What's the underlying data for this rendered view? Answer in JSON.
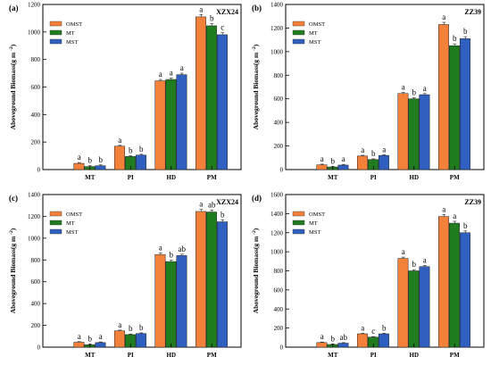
{
  "legend": [
    "OMST",
    "MT",
    "MST"
  ],
  "colors": {
    "OMST": "#f4813a",
    "MT": "#1f7d1f",
    "MST": "#2f5fbf"
  },
  "ylabel_main": "Aboveground Biomass(g m",
  "ylabel_sup": "-2",
  "ylabel_close": ")",
  "chart_data": [
    {
      "panel": "(a)",
      "title": "XZX24",
      "type": "bar",
      "categories": [
        "MT",
        "PI",
        "HD",
        "PM"
      ],
      "ylim": [
        0,
        1200
      ],
      "yticks": [
        0,
        200,
        400,
        600,
        800,
        1000,
        1200
      ],
      "series": [
        {
          "name": "OMST",
          "values": [
            45,
            170,
            645,
            1110
          ]
        },
        {
          "name": "MT",
          "values": [
            22,
            95,
            655,
            1045
          ]
        },
        {
          "name": "MST",
          "values": [
            28,
            105,
            690,
            980
          ]
        }
      ],
      "letters": [
        [
          "a",
          "b",
          "b"
        ],
        [
          "a",
          "b",
          "b"
        ],
        [
          "a",
          "a",
          "a"
        ],
        [
          "a",
          "b",
          "c"
        ]
      ]
    },
    {
      "panel": "(b)",
      "title": "ZZ39",
      "type": "bar",
      "categories": [
        "MT",
        "PI",
        "HD",
        "PM"
      ],
      "ylim": [
        0,
        1400
      ],
      "yticks": [
        0,
        200,
        400,
        600,
        800,
        1000,
        1200,
        1400
      ],
      "series": [
        {
          "name": "OMST",
          "values": [
            40,
            115,
            645,
            1230
          ]
        },
        {
          "name": "MT",
          "values": [
            22,
            85,
            600,
            1050
          ]
        },
        {
          "name": "MST",
          "values": [
            38,
            120,
            635,
            1110
          ]
        }
      ],
      "letters": [
        [
          "a",
          "b",
          "a"
        ],
        [
          "a",
          "b",
          "a"
        ],
        [
          "a",
          "b",
          "a"
        ],
        [
          "a",
          "b",
          "b"
        ]
      ]
    },
    {
      "panel": "(c)",
      "title": "XZX24",
      "type": "bar",
      "categories": [
        "MT",
        "PI",
        "HD",
        "PM"
      ],
      "ylim": [
        0,
        1400
      ],
      "yticks": [
        0,
        200,
        400,
        600,
        800,
        1000,
        1200,
        1400
      ],
      "series": [
        {
          "name": "OMST",
          "values": [
            45,
            150,
            850,
            1245
          ]
        },
        {
          "name": "MT",
          "values": [
            22,
            115,
            785,
            1240
          ]
        },
        {
          "name": "MST",
          "values": [
            42,
            125,
            840,
            1150
          ]
        }
      ],
      "letters": [
        [
          "a",
          "b",
          "a"
        ],
        [
          "a",
          "b",
          "b"
        ],
        [
          "a",
          "b",
          "ab"
        ],
        [
          "a",
          "ab",
          "b"
        ]
      ]
    },
    {
      "panel": "(d)",
      "title": "ZZ39",
      "type": "bar",
      "categories": [
        "MT",
        "PI",
        "HD",
        "PM"
      ],
      "ylim": [
        0,
        1600
      ],
      "yticks": [
        0,
        200,
        400,
        600,
        800,
        1000,
        1200,
        1400,
        1600
      ],
      "series": [
        {
          "name": "OMST",
          "values": [
            48,
            140,
            930,
            1370
          ]
        },
        {
          "name": "MT",
          "values": [
            28,
            105,
            800,
            1300
          ]
        },
        {
          "name": "MST",
          "values": [
            42,
            140,
            845,
            1200
          ]
        }
      ],
      "letters": [
        [
          "a",
          "b",
          "ab"
        ],
        [
          "a",
          "c",
          "b"
        ],
        [
          "a",
          "b",
          "a"
        ],
        [
          "a",
          "a",
          "b"
        ]
      ]
    }
  ]
}
